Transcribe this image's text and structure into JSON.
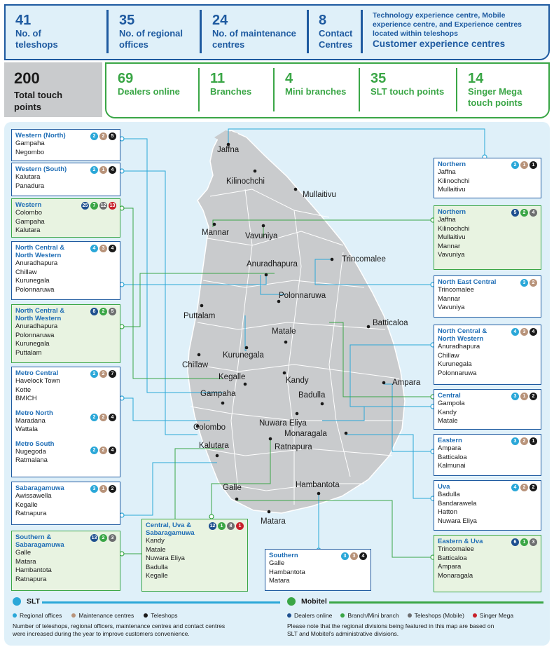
{
  "top_stats": [
    {
      "num": "41",
      "label1": "No. of",
      "label2": "teleshops"
    },
    {
      "num": "35",
      "label1": "No. of regional",
      "label2": "offices"
    },
    {
      "num": "24",
      "label1": "No. of maintenance",
      "label2": "centres"
    },
    {
      "num": "8",
      "label1": "Contact",
      "label2": "Centres"
    }
  ],
  "customer_centre": {
    "desc1": "Technology experience centre, Mobile",
    "desc2": "experience centre, and Experience centres",
    "desc3": "located within teleshops",
    "title": "Customer experience centres"
  },
  "total": {
    "num": "200",
    "label1": "Total touch",
    "label2": "points"
  },
  "green_stats": [
    {
      "num": "69",
      "label1": "Dealers online",
      "label2": ""
    },
    {
      "num": "11",
      "label1": "Branches",
      "label2": ""
    },
    {
      "num": "4",
      "label1": "Mini branches",
      "label2": ""
    },
    {
      "num": "35",
      "label1": "SLT touch points",
      "label2": ""
    },
    {
      "num": "14",
      "label1": "Singer Mega",
      "label2": "touch points"
    }
  ],
  "left_boxes": [
    {
      "title1": "Western (North)",
      "title2": "",
      "badges": [
        "2",
        "2",
        "5"
      ],
      "items": [
        "Gampaha",
        "Negombo"
      ]
    },
    {
      "title1": "Western (South)",
      "title2": "",
      "badges": [
        "2",
        "1",
        "4"
      ],
      "items": [
        "Kalutara",
        "Panadura"
      ]
    },
    {
      "title1": "Western",
      "title2": "",
      "badges": [
        "25",
        "7",
        "12",
        "13"
      ],
      "items": [
        "Colombo",
        "Gampaha",
        "Kalutara"
      ]
    },
    {
      "title1": "North Central &",
      "title2": "North Western",
      "badges": [
        "4",
        "3",
        "4"
      ],
      "items": [
        "Anuradhapura",
        "Chillaw",
        "Kurunegala",
        "Polonnaruwa"
      ]
    },
    {
      "title1": "North Central &",
      "title2": "North Western",
      "badges": [
        "8",
        "2",
        "5"
      ],
      "items": [
        "Anuradhapura",
        "Polonnaruwa",
        "Kurunegala",
        "Puttalam"
      ]
    },
    {
      "title1": "Metro Central",
      "title2": "",
      "badges": [
        "2",
        "2",
        "7"
      ],
      "items": [
        "Havelock Town",
        "Kotte",
        "BMICH"
      ]
    },
    {
      "title1": "Metro North",
      "title2": "",
      "badges": [
        "2",
        "2",
        "4"
      ],
      "items": [
        "Maradana",
        "Wattala"
      ]
    },
    {
      "title1": "Metro South",
      "title2": "",
      "badges": [
        "2",
        "2",
        "4"
      ],
      "items": [
        "Nugegoda",
        "Ratmalana"
      ]
    },
    {
      "title1": "Sabaragamuwa",
      "title2": "",
      "badges": [
        "3",
        "1",
        "2"
      ],
      "items": [
        "Awissawella",
        "Kegalle",
        "Ratnapura"
      ]
    },
    {
      "title1": "Southern &",
      "title2": "Sabaragamuwa",
      "badges": [
        "13",
        "2",
        "3"
      ],
      "items": [
        "Galle",
        "Matara",
        "Hambantota",
        "Ratnapura"
      ]
    }
  ],
  "right_boxes": [
    {
      "title1": "Northern",
      "title2": "",
      "badges": [
        "2",
        "1",
        "1"
      ],
      "items": [
        "Jaffna",
        "Kilinochchi",
        "Mullaitivu"
      ]
    },
    {
      "title1": "Northern",
      "title2": "",
      "badges": [
        "5",
        "2",
        "4"
      ],
      "items": [
        "Jaffna",
        "Kilinochchi",
        "Mullaitivu",
        "Mannar",
        "Vavuniya"
      ]
    },
    {
      "title1": "North East Central",
      "title2": "",
      "badges": [
        "3",
        "2"
      ],
      "items": [
        "Trincomalee",
        "Mannar",
        "Vavuniya"
      ]
    },
    {
      "title1": "North Central &",
      "title2": "North Western",
      "badges": [
        "4",
        "3",
        "4"
      ],
      "items": [
        "Anuradhapura",
        "Chillaw",
        "Kurunegala",
        "Polonnaruwa"
      ]
    },
    {
      "title1": "Central",
      "title2": "",
      "badges": [
        "3",
        "1",
        "2"
      ],
      "items": [
        "Gampola",
        "Kandy",
        "Matale"
      ]
    },
    {
      "title1": "Eastern",
      "title2": "",
      "badges": [
        "3",
        "2",
        "1"
      ],
      "items": [
        "Ampara",
        "Batticaloa",
        "Kalmunai"
      ]
    },
    {
      "title1": "Uva",
      "title2": "",
      "badges": [
        "4",
        "2",
        "2"
      ],
      "items": [
        "Badulla",
        "Bandarawela",
        "Hatton",
        "Nuwara Eliya"
      ]
    },
    {
      "title1": "Eastern & Uva",
      "title2": "",
      "badges": [
        "6",
        "1",
        "3"
      ],
      "items": [
        "Trincomalee",
        "Batticaloa",
        "Ampara",
        "Monaragala"
      ]
    }
  ],
  "bottom_boxes": [
    {
      "title1": "Central, Uva &",
      "title2": "Sabaragamuwa",
      "badges": [
        "12",
        "1",
        "8",
        "1"
      ],
      "items": [
        "Kandy",
        "Matale",
        "Nuwara Eliya",
        "Badulla",
        "Kegalle"
      ]
    },
    {
      "title1": "Southern",
      "title2": "",
      "badges": [
        "3",
        "3",
        "4"
      ],
      "items": [
        "Galle",
        "Hambantota",
        "Matara"
      ]
    }
  ],
  "towns": [
    "Jaffna",
    "Kilinochchi",
    "Mullaitivu",
    "Mannar",
    "Vavuniya",
    "Trincomalee",
    "Anuradhapura",
    "Polonnaruwa",
    "Puttalam",
    "Batticaloa",
    "Matale",
    "Kurunegala",
    "Chillaw",
    "Kegalle",
    "Kandy",
    "Ampara",
    "Gampaha",
    "Badulla",
    "Colombo",
    "Nuwara Eliya",
    "Monaragala",
    "Kalutara",
    "Ratnapura",
    "Galle",
    "Hambantota",
    "Matara"
  ],
  "legend": {
    "slt": "SLT",
    "mobitel": "Mobitel",
    "slt_items": [
      "Regional offices",
      "Maintenance centres",
      "Teleshops"
    ],
    "mobitel_items": [
      "Dealers online",
      "Branch/Mini branch",
      "Teleshops (Mobile)",
      "Singer Mega"
    ],
    "note_left1": "Number of teleshops, regional officers, maintenance centres and contact centres",
    "note_left2": "were increased during the year to improve customers convenience.",
    "note_right1": "Please note that the regional divisions being featured in this map are based on",
    "note_right2": "SLT and Mobitel's administrative divisions."
  },
  "colors": {
    "slt_blue": "#1e5aa0",
    "mobitel_green": "#3aa646",
    "frame_bg": "#dff0f9",
    "land": "#c9cbcd"
  }
}
